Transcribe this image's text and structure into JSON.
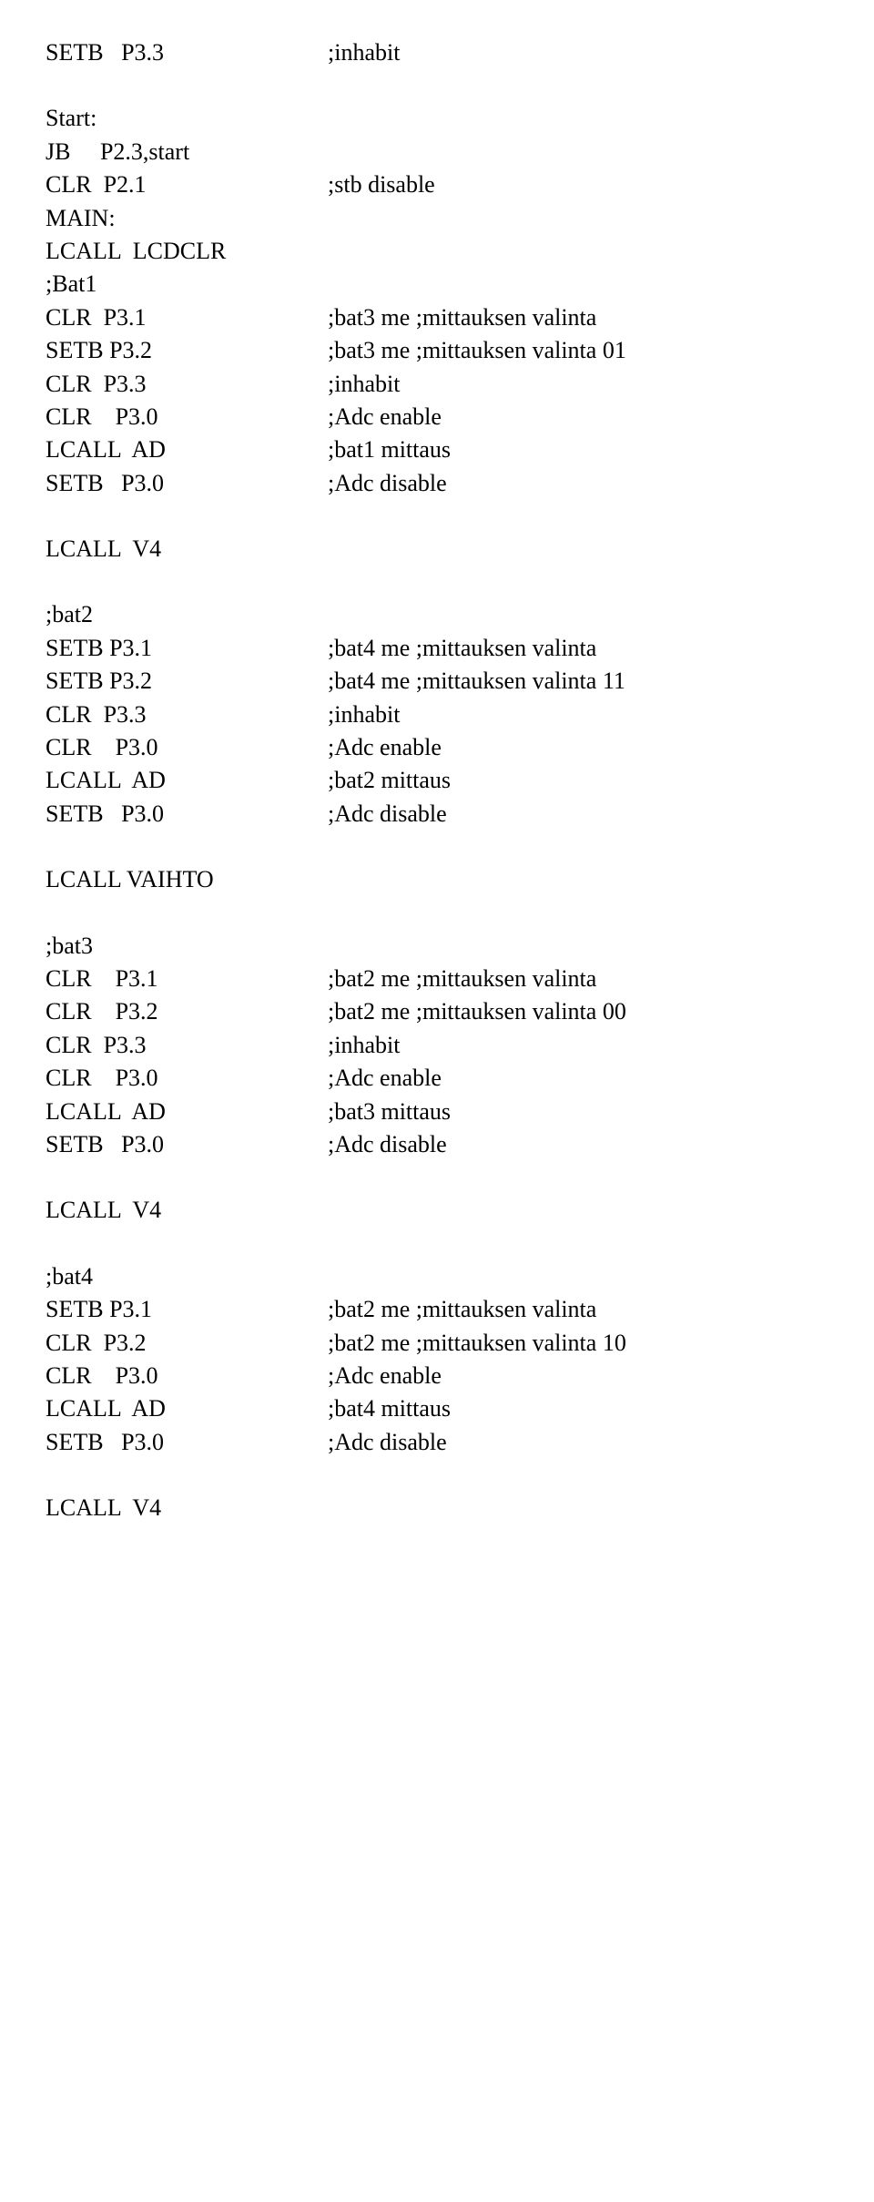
{
  "lines": [
    {
      "c1": "SETB   P3.3",
      "c2": ";inhabit"
    },
    {
      "blank": true
    },
    {
      "c1": "Start:",
      "c2": ""
    },
    {
      "c1": "JB     P2.3,start",
      "c2": ""
    },
    {
      "c1": "CLR  P2.1",
      "c2": ";stb disable"
    },
    {
      "c1": "MAIN:",
      "c2": ""
    },
    {
      "c1": "LCALL  LCDCLR",
      "c2": ""
    },
    {
      "c1": ";Bat1",
      "c2": ""
    },
    {
      "c1": "CLR  P3.1",
      "c2": ";bat3 me ;mittauksen valinta"
    },
    {
      "c1": "SETB P3.2",
      "c2": ";bat3 me ;mittauksen valinta 01"
    },
    {
      "c1": "CLR  P3.3",
      "c2": ";inhabit"
    },
    {
      "c1": "CLR    P3.0",
      "c2": ";Adc enable"
    },
    {
      "c1": "LCALL  AD",
      "c2": ";bat1 mittaus"
    },
    {
      "c1": "SETB   P3.0",
      "c2": ";Adc disable"
    },
    {
      "blank": true
    },
    {
      "c1": "LCALL  V4",
      "c2": ""
    },
    {
      "blank": true
    },
    {
      "c1": ";bat2",
      "c2": ""
    },
    {
      "c1": "SETB P3.1",
      "c2": ";bat4 me ;mittauksen valinta"
    },
    {
      "c1": "SETB P3.2",
      "c2": ";bat4 me ;mittauksen valinta 11"
    },
    {
      "c1": "CLR  P3.3",
      "c2": ";inhabit"
    },
    {
      "c1": "CLR    P3.0",
      "c2": ";Adc enable"
    },
    {
      "c1": "LCALL  AD",
      "c2": ";bat2 mittaus"
    },
    {
      "c1": "SETB   P3.0",
      "c2": ";Adc disable"
    },
    {
      "blank": true
    },
    {
      "c1": "LCALL VAIHTO",
      "c2": ""
    },
    {
      "blank": true
    },
    {
      "c1": ";bat3",
      "c2": ""
    },
    {
      "c1": "CLR    P3.1",
      "c2": ";bat2 me ;mittauksen valinta"
    },
    {
      "c1": "CLR    P3.2",
      "c2": ";bat2 me ;mittauksen valinta 00"
    },
    {
      "c1": "CLR  P3.3",
      "c2": ";inhabit"
    },
    {
      "c1": "CLR    P3.0",
      "c2": ";Adc enable"
    },
    {
      "c1": "LCALL  AD",
      "c2": ";bat3 mittaus"
    },
    {
      "c1": "SETB   P3.0",
      "c2": ";Adc disable"
    },
    {
      "blank": true
    },
    {
      "c1": "LCALL  V4",
      "c2": ""
    },
    {
      "blank": true
    },
    {
      "c1": ";bat4",
      "c2": ""
    },
    {
      "c1": "SETB P3.1",
      "c2": ";bat2 me ;mittauksen valinta"
    },
    {
      "c1": "CLR  P3.2",
      "c2": ";bat2 me ;mittauksen valinta 10"
    },
    {
      "c1": "CLR    P3.0",
      "c2": ";Adc enable"
    },
    {
      "c1": "LCALL  AD",
      "c2": ";bat4 mittaus"
    },
    {
      "c1": "SETB   P3.0",
      "c2": ";Adc disable"
    },
    {
      "blank": true
    },
    {
      "c1": "LCALL  V4",
      "c2": ""
    }
  ]
}
